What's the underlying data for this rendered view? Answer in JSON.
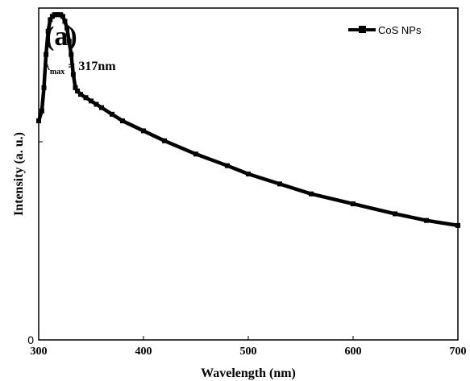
{
  "chart_data": {
    "type": "line",
    "panel_label": "(a)",
    "xlabel": "Wavelength (nm)",
    "ylabel": "Intensity (a. u.)",
    "xlim": [
      300,
      700
    ],
    "ylim": [
      0,
      1.0
    ],
    "x_ticks": [
      300,
      400,
      500,
      600,
      700
    ],
    "x_tick_labels": [
      "300",
      "400",
      "500",
      "600",
      "700"
    ],
    "y_tick_labels": [
      {
        "value": 0,
        "label": "0"
      }
    ],
    "grid": false,
    "legend": {
      "position": "top-right",
      "entries": [
        "CoS NPs"
      ]
    },
    "annotation": {
      "lambda": "λ",
      "subscript": "max",
      "text": " = 317nm"
    },
    "series": [
      {
        "name": "CoS NPs",
        "color": "#000000",
        "marker": "square",
        "x": [
          300,
          303,
          305,
          307,
          309,
          311,
          313,
          315,
          317,
          319,
          321,
          323,
          325,
          327,
          329,
          331,
          333,
          335,
          337,
          340,
          345,
          350,
          355,
          360,
          370,
          380,
          400,
          420,
          450,
          480,
          500,
          530,
          560,
          600,
          640,
          670,
          700
        ],
        "values": [
          0.66,
          0.69,
          0.76,
          0.86,
          0.93,
          0.965,
          0.975,
          0.98,
          0.98,
          0.98,
          0.98,
          0.975,
          0.96,
          0.94,
          0.9,
          0.86,
          0.8,
          0.76,
          0.75,
          0.74,
          0.73,
          0.72,
          0.71,
          0.7,
          0.68,
          0.66,
          0.63,
          0.6,
          0.56,
          0.525,
          0.5,
          0.47,
          0.44,
          0.41,
          0.38,
          0.36,
          0.345
        ]
      }
    ]
  }
}
